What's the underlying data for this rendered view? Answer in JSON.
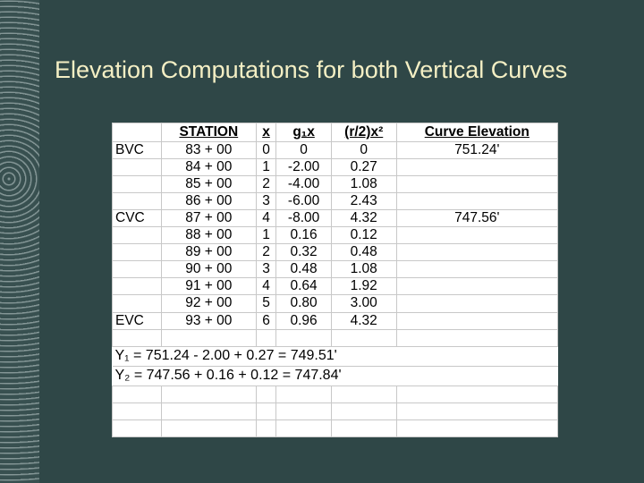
{
  "title": "Elevation Computations for both Vertical Curves",
  "table": {
    "header": [
      "STATION",
      "x",
      "g₁x",
      "(r/2)x²",
      "Curve Elevation"
    ],
    "rows": [
      {
        "label": "BVC",
        "cells": [
          "83 + 00",
          "0",
          "0",
          "0",
          "751.24'"
        ]
      },
      {
        "cells": [
          "84 + 00",
          "1",
          "-2.00",
          "0.27"
        ]
      },
      {
        "cells": [
          "85 + 00",
          "2",
          "-4.00",
          "1.08"
        ]
      },
      {
        "cells": [
          "86 + 00",
          "3",
          "-6.00",
          "2.43"
        ]
      },
      {
        "label": "CVC",
        "cells": [
          "87 + 00",
          "4",
          "-8.00",
          "4.32",
          "747.56'"
        ]
      },
      {
        "cells": [
          "88 + 00",
          "1",
          "0.16",
          "0.12"
        ]
      },
      {
        "cells": [
          "89 + 00",
          "2",
          "0.32",
          "0.48"
        ]
      },
      {
        "cells": [
          "90 + 00",
          "3",
          "0.48",
          "1.08"
        ]
      },
      {
        "cells": [
          "91 + 00",
          "4",
          "0.64",
          "1.92"
        ]
      },
      {
        "cells": [
          "92 + 00",
          "5",
          "0.80",
          "3.00"
        ]
      },
      {
        "label": "EVC",
        "cells": [
          "93 + 00",
          "6",
          "0.96",
          "4.32"
        ]
      }
    ],
    "formulas": [
      "Y₁ = 751.24 - 2.00 + 0.27 = 749.51'",
      "Y₂ = 747.56 + 0.16 + 0.12 = 747.84'"
    ]
  }
}
